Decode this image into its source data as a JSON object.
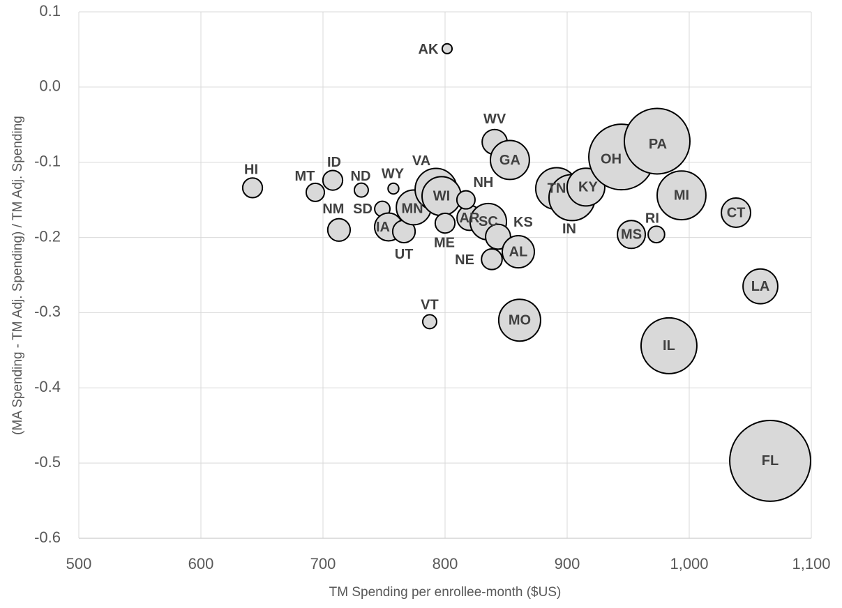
{
  "chart_data": {
    "type": "bubble",
    "x_label": "TM Spending per enrollee-month ($US)",
    "y_label": "(MA Spending - TM Adj. Spending) / TM Adj. Spending",
    "xlim": [
      500,
      1100
    ],
    "xticks": [
      500,
      600,
      700,
      800,
      900,
      {
        "value": 1000,
        "label": "1,000"
      },
      {
        "value": 1100,
        "label": "1,100"
      }
    ],
    "ylim": [
      -0.6,
      0.1
    ],
    "yticks": [
      -0.6,
      -0.5,
      -0.4,
      -0.3,
      -0.2,
      -0.1,
      {
        "value": 0,
        "label": "0.0"
      },
      0.1
    ],
    "grid": true,
    "color": "#d9d9d9",
    "labels": [
      "AK",
      "HI",
      "MT",
      "ID",
      "ND",
      "WY",
      "NM",
      "SD",
      "IA",
      "UT",
      "MN",
      "VA",
      "WI",
      "VT",
      "ME",
      "AR",
      "NH",
      "SC",
      "KS",
      "NE",
      "AL",
      "WV",
      "GA",
      "MO",
      "TN",
      "IN",
      "KY",
      "OH",
      "PA",
      "MI",
      "MS",
      "RI",
      "CT",
      "LA",
      "IL",
      "FL"
    ],
    "x": [
      801.7,
      642.3,
      693.7,
      708,
      731.4,
      757.7,
      713.1,
      748.6,
      753.7,
      766.3,
      774.3,
      792.6,
      797.1,
      787.4,
      800,
      820,
      817.1,
      835.4,
      843.4,
      838.3,
      860,
      840.6,
      853.1,
      861.1,
      891.4,
      904,
      915.4,
      944.6,
      973.7,
      993.7,
      952.6,
      973.1,
      1038.3,
      1058.3,
      983.4,
      1066.3
    ],
    "values": [
      0.051,
      -0.134,
      -0.14,
      -0.124,
      -0.137,
      -0.135,
      -0.19,
      -0.162,
      -0.186,
      -0.192,
      -0.16,
      -0.136,
      -0.145,
      -0.312,
      -0.181,
      -0.174,
      -0.15,
      -0.179,
      -0.199,
      -0.229,
      -0.219,
      -0.073,
      -0.097,
      -0.31,
      -0.135,
      -0.147,
      -0.133,
      -0.093,
      -0.072,
      -0.144,
      -0.196,
      -0.196,
      -0.167,
      -0.265,
      -0.344,
      -0.497
    ],
    "sizes": [
      5,
      20,
      17,
      20,
      10,
      6,
      26,
      12,
      40,
      26,
      62,
      90,
      78,
      10,
      20,
      32,
      17,
      68,
      32,
      22,
      53,
      32,
      78,
      90,
      90,
      109,
      73,
      221,
      221,
      122,
      40,
      14,
      44,
      62,
      160,
      336
    ]
  }
}
